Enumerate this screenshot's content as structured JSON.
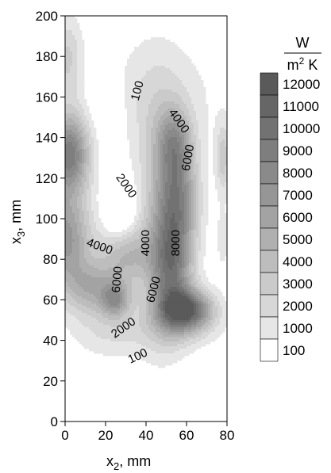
{
  "chart_data": {
    "type": "heatmap",
    "subtype": "filled-contour",
    "x_axis": {
      "label_main": "x",
      "label_sub": "2",
      "label_unit": ", mm",
      "range": [
        0,
        80
      ],
      "ticks": [
        0,
        20,
        40,
        60,
        80
      ]
    },
    "y_axis": {
      "label_main": "x",
      "label_sub": "3",
      "label_unit": ", mm",
      "range": [
        0,
        200
      ],
      "ticks": [
        0,
        20,
        40,
        60,
        80,
        100,
        120,
        140,
        160,
        180,
        200
      ]
    },
    "colorbar": {
      "unit_numerator": "W",
      "unit_denominator_base": "m",
      "unit_denominator_exp": "2",
      "unit_denominator_rest": " K",
      "levels": [
        12000,
        11000,
        10000,
        9000,
        8000,
        7000,
        6000,
        5000,
        4000,
        3000,
        2000,
        1000,
        100
      ],
      "colors": [
        "#5a5a5a",
        "#666666",
        "#727272",
        "#7e7e7e",
        "#8a8a8a",
        "#969696",
        "#a3a3a3",
        "#b0b0b0",
        "#bdbdbd",
        "#cacaca",
        "#d7d7d7",
        "#e6e6e6",
        "#ffffff"
      ]
    },
    "contour_labels": [
      {
        "text": "100",
        "x": 36,
        "y": 163,
        "angle": -75
      },
      {
        "text": "4000",
        "x": 56,
        "y": 148,
        "angle": 55
      },
      {
        "text": "6000",
        "x": 61,
        "y": 130,
        "angle": -80
      },
      {
        "text": "2000",
        "x": 30,
        "y": 116,
        "angle": 55
      },
      {
        "text": "4000",
        "x": 17,
        "y": 86,
        "angle": 20
      },
      {
        "text": "4000",
        "x": 40,
        "y": 88,
        "angle": -90
      },
      {
        "text": "8000",
        "x": 55,
        "y": 88,
        "angle": -90
      },
      {
        "text": "6000",
        "x": 26,
        "y": 70,
        "angle": -85
      },
      {
        "text": "6000",
        "x": 44,
        "y": 65,
        "angle": -75
      },
      {
        "text": "2000",
        "x": 29,
        "y": 46,
        "angle": -35
      },
      {
        "text": "100",
        "x": 36,
        "y": 32,
        "angle": -25
      }
    ],
    "blobs": [
      {
        "x": 2,
        "y": 132,
        "sx": 7,
        "sy": 14,
        "amp": 9500
      },
      {
        "x": 0,
        "y": 90,
        "sx": 9,
        "sy": 16,
        "amp": 7500
      },
      {
        "x": 1,
        "y": 180,
        "sx": 5,
        "sy": 14,
        "amp": 3000
      },
      {
        "x": 14,
        "y": 66,
        "sx": 10,
        "sy": 9,
        "amp": 5000
      },
      {
        "x": 25,
        "y": 60,
        "sx": 5,
        "sy": 6,
        "amp": 5500
      },
      {
        "x": 30,
        "y": 82,
        "sx": 9,
        "sy": 10,
        "amp": 4500
      },
      {
        "x": 60,
        "y": 55,
        "sx": 9,
        "sy": 7,
        "amp": 11000
      },
      {
        "x": 53,
        "y": 75,
        "sx": 7,
        "sy": 18,
        "amp": 7500
      },
      {
        "x": 56,
        "y": 110,
        "sx": 7,
        "sy": 18,
        "amp": 7000
      },
      {
        "x": 54,
        "y": 138,
        "sx": 6,
        "sy": 12,
        "amp": 5000
      },
      {
        "x": 47,
        "y": 100,
        "sx": 8,
        "sy": 40,
        "amp": 3500
      },
      {
        "x": 78,
        "y": 130,
        "sx": 2.5,
        "sy": 12,
        "amp": 3500
      },
      {
        "x": 78,
        "y": 90,
        "sx": 2.5,
        "sy": 12,
        "amp": 1500
      },
      {
        "x": 22,
        "y": 45,
        "sx": 14,
        "sy": 10,
        "amp": 2000
      },
      {
        "x": 55,
        "y": 45,
        "sx": 16,
        "sy": 8,
        "amp": 1500
      },
      {
        "x": 42,
        "y": 160,
        "sx": 24,
        "sy": 22,
        "amp": 1800
      }
    ],
    "dips": [
      {
        "x": 27,
        "y": 104,
        "sx": 5,
        "sy": 9,
        "amp": 3000
      },
      {
        "x": 20,
        "y": 155,
        "sx": 8,
        "sy": 16,
        "amp": 1500
      }
    ]
  }
}
